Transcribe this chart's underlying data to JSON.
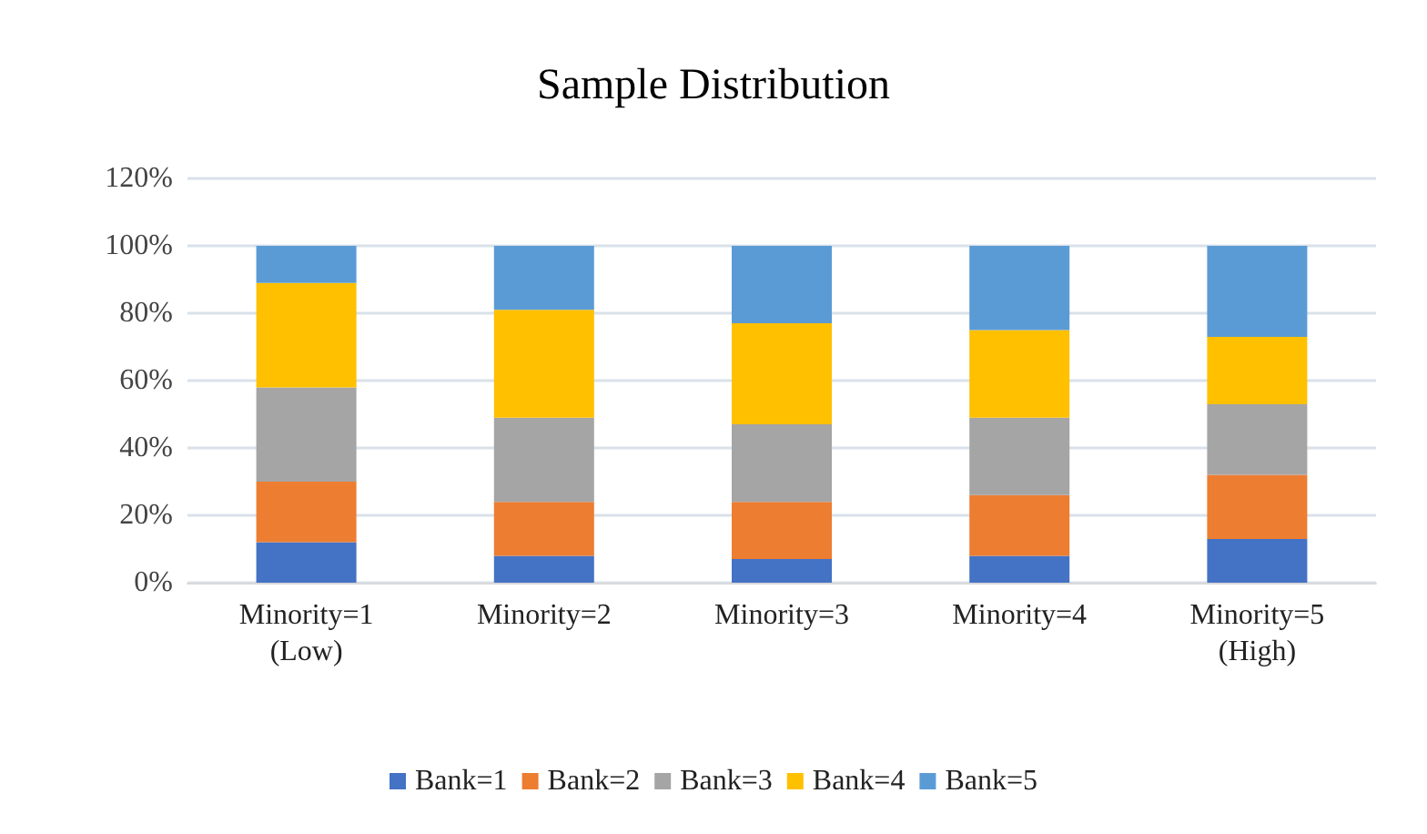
{
  "chart_data": {
    "type": "bar",
    "title": "Sample Distribution",
    "stacked": true,
    "categories": [
      "Minority=1\n(Low)",
      "Minority=2",
      "Minority=3",
      "Minority=4",
      "Minority=5\n(High)"
    ],
    "series": [
      {
        "name": "Bank=1",
        "color": "#4472c4",
        "values": [
          12,
          8,
          7,
          8,
          13
        ]
      },
      {
        "name": "Bank=2",
        "color": "#ed7d31",
        "values": [
          18,
          16,
          17,
          18,
          19
        ]
      },
      {
        "name": "Bank=3",
        "color": "#a5a5a5",
        "values": [
          28,
          25,
          23,
          23,
          21
        ]
      },
      {
        "name": "Bank=4",
        "color": "#ffc000",
        "values": [
          31,
          32,
          30,
          26,
          20
        ]
      },
      {
        "name": "Bank=5",
        "color": "#5b9bd5",
        "values": [
          11,
          19,
          23,
          25,
          27
        ]
      }
    ],
    "ylim": [
      0,
      120
    ],
    "yticks": [
      {
        "value": 0,
        "label": "0%"
      },
      {
        "value": 20,
        "label": "20%"
      },
      {
        "value": 40,
        "label": "40%"
      },
      {
        "value": 60,
        "label": "60%"
      },
      {
        "value": 80,
        "label": "80%"
      },
      {
        "value": 100,
        "label": "100%"
      },
      {
        "value": 120,
        "label": "120%"
      }
    ],
    "grid": "y",
    "legend": "bottom"
  }
}
